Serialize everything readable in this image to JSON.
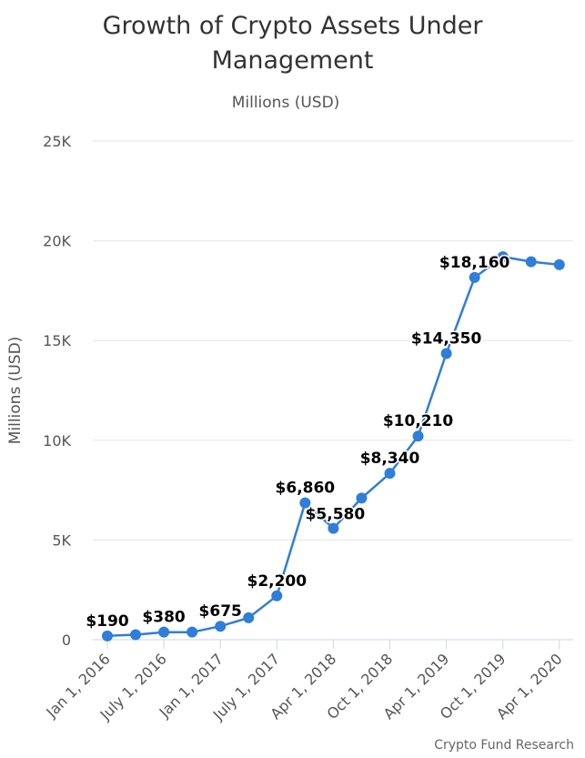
{
  "chart_data": {
    "type": "line",
    "title_lines": [
      "Growth of Crypto Assets Under",
      "Management"
    ],
    "subtitle": "Millions (USD)",
    "ylabel": "Millions (USD)",
    "xlabel": "",
    "ylim": [
      0,
      25000
    ],
    "y_ticks": [
      {
        "value": 0,
        "label": "0"
      },
      {
        "value": 5000,
        "label": "5K"
      },
      {
        "value": 10000,
        "label": "10K"
      },
      {
        "value": 15000,
        "label": "15K"
      },
      {
        "value": 20000,
        "label": "20K"
      },
      {
        "value": 25000,
        "label": "25K"
      }
    ],
    "x_tick_labels": [
      "Jan 1, 2016",
      "July 1, 2016",
      "Jan 1, 2017",
      "July 1, 2017",
      "Apr 1, 2018",
      "Oct 1, 2018",
      "Apr 1, 2019",
      "Oct 1, 2019",
      "Apr 1, 2020"
    ],
    "points": [
      {
        "y": 190,
        "label": "$190"
      },
      {
        "y": 250,
        "label": ""
      },
      {
        "y": 380,
        "label": "$380"
      },
      {
        "y": 380,
        "label": ""
      },
      {
        "y": 675,
        "label": "$675"
      },
      {
        "y": 1100,
        "label": ""
      },
      {
        "y": 2200,
        "label": "$2,200"
      },
      {
        "y": 6860,
        "label": "$6,860"
      },
      {
        "y": 5580,
        "label": "$5,580"
      },
      {
        "y": 7100,
        "label": ""
      },
      {
        "y": 8340,
        "label": "$8,340"
      },
      {
        "y": 10210,
        "label": "$10,210"
      },
      {
        "y": 14350,
        "label": "$14,350"
      },
      {
        "y": 18160,
        "label": "$18,160"
      },
      {
        "y": 19200,
        "label": ""
      },
      {
        "y": 18950,
        "label": ""
      },
      {
        "y": 18800,
        "label": ""
      }
    ],
    "grid": true,
    "legend": "none",
    "series_color": "#2f7ed8"
  },
  "credits": "Crypto Fund Research"
}
